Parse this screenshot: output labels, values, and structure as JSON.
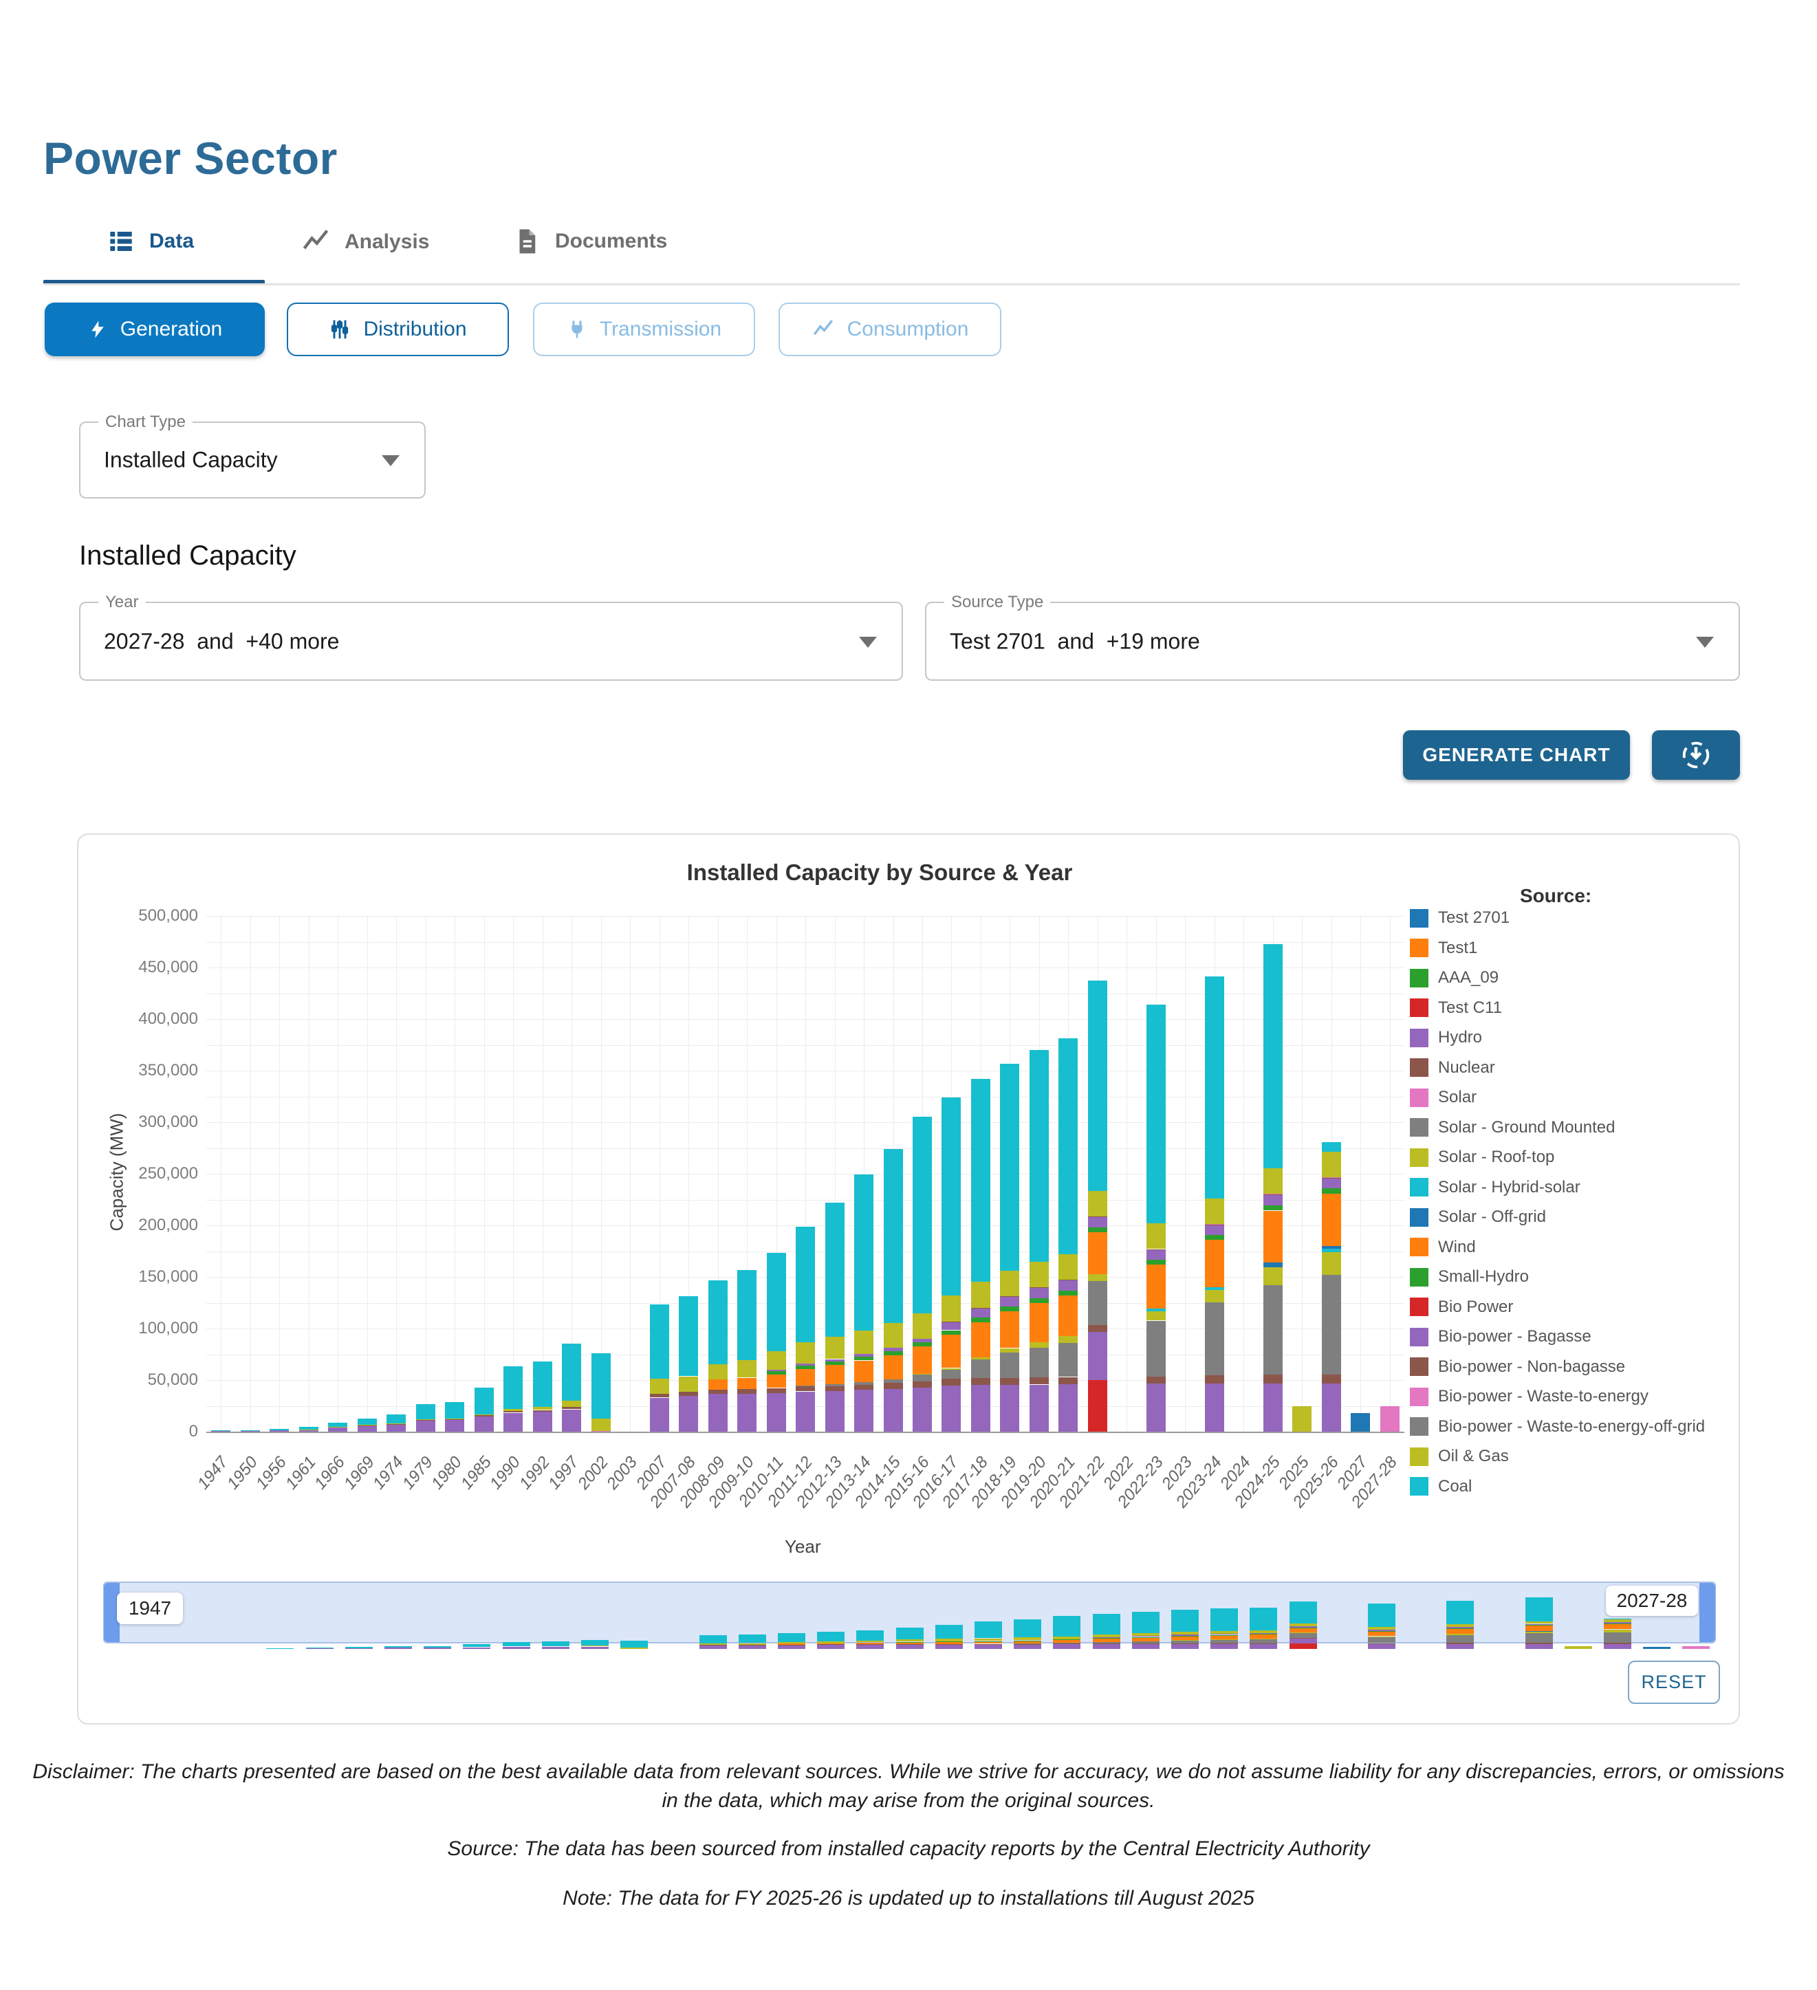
{
  "page": {
    "title": "Power Sector"
  },
  "tabs": [
    {
      "label": "Data",
      "active": true
    },
    {
      "label": "Analysis",
      "active": false
    },
    {
      "label": "Documents",
      "active": false
    }
  ],
  "category_buttons": [
    {
      "label": "Generation",
      "state": "filled"
    },
    {
      "label": "Distribution",
      "state": "outline"
    },
    {
      "label": "Transmission",
      "state": "light"
    },
    {
      "label": "Consumption",
      "state": "light"
    }
  ],
  "filters": {
    "chart_type": {
      "label": "Chart Type",
      "value": "Installed Capacity"
    },
    "section_heading": "Installed Capacity",
    "year": {
      "label": "Year",
      "value": "2027-28  and  +40 more"
    },
    "source_type": {
      "label": "Source Type",
      "value": "Test 2701  and  +19 more"
    }
  },
  "actions": {
    "generate": "GENERATE CHART",
    "reset": "RESET"
  },
  "navigator": {
    "start_label": "1947",
    "end_label": "2027-28"
  },
  "footer": {
    "disclaimer_line1": "Disclaimer: The charts presented are based on the best available data from relevant sources. While we strive for accuracy, we do not assume liability for any discrepancies, errors, or omissions",
    "disclaimer_line2": "in the data, which may arise from the original sources.",
    "source": "Source: The data has been sourced from installed capacity reports by the Central Electricity Authority",
    "note": "Note: The data for FY 2025-26 is updated up to installations till August 2025"
  },
  "chart_data": {
    "type": "bar",
    "stacked": true,
    "title": "Installed Capacity by Source & Year",
    "xlabel": "Year",
    "ylabel": "Capacity (MW)",
    "legend_title": "Source:",
    "ylim": [
      0,
      500000
    ],
    "ytick_step": 50000,
    "grid": true,
    "categories": [
      "1947",
      "1950",
      "1956",
      "1961",
      "1966",
      "1969",
      "1974",
      "1979",
      "1980",
      "1985",
      "1990",
      "1992",
      "1997",
      "2002",
      "2003",
      "2007",
      "2007-08",
      "2008-09",
      "2009-10",
      "2010-11",
      "2011-12",
      "2012-13",
      "2013-14",
      "2014-15",
      "2015-16",
      "2016-17",
      "2017-18",
      "2018-19",
      "2019-20",
      "2020-21",
      "2021-22",
      "2022",
      "2022-23",
      "2023",
      "2023-24",
      "2024",
      "2024-25",
      "2025",
      "2025-26",
      "2027",
      "2027-28"
    ],
    "series": [
      {
        "name": "Test 2701",
        "color": "#1f77b4",
        "values": [
          0,
          0,
          0,
          0,
          0,
          0,
          0,
          0,
          0,
          0,
          0,
          0,
          0,
          0,
          0,
          0,
          0,
          0,
          0,
          0,
          0,
          0,
          0,
          0,
          0,
          0,
          0,
          0,
          0,
          0,
          0,
          0,
          0,
          0,
          0,
          0,
          0,
          0,
          0,
          18000,
          0
        ]
      },
      {
        "name": "Test1",
        "color": "#ff7f0e",
        "values": [
          0,
          0,
          0,
          0,
          0,
          0,
          0,
          0,
          0,
          0,
          0,
          0,
          0,
          0,
          0,
          0,
          0,
          0,
          0,
          0,
          0,
          0,
          0,
          0,
          0,
          0,
          0,
          0,
          0,
          0,
          0,
          0,
          0,
          0,
          0,
          0,
          0,
          0,
          0,
          0,
          0
        ]
      },
      {
        "name": "AAA_09",
        "color": "#2ca02c",
        "values": [
          0,
          0,
          0,
          0,
          0,
          0,
          0,
          0,
          0,
          0,
          0,
          0,
          0,
          0,
          0,
          0,
          0,
          0,
          0,
          0,
          0,
          0,
          0,
          0,
          0,
          0,
          0,
          0,
          0,
          0,
          0,
          0,
          0,
          0,
          0,
          0,
          0,
          0,
          0,
          0,
          0
        ]
      },
      {
        "name": "Test C11",
        "color": "#d62728",
        "values": [
          0,
          0,
          0,
          0,
          0,
          0,
          0,
          0,
          0,
          0,
          0,
          0,
          0,
          0,
          0,
          0,
          0,
          0,
          0,
          0,
          0,
          0,
          0,
          0,
          0,
          0,
          0,
          0,
          0,
          0,
          50000,
          0,
          0,
          0,
          0,
          0,
          0,
          0,
          0,
          0,
          0
        ]
      },
      {
        "name": "Hydro",
        "color": "#9467bd",
        "values": [
          508,
          560,
          1061,
          1917,
          4124,
          5907,
          6966,
          10833,
          11384,
          14460,
          18308,
          19194,
          21658,
          0,
          0,
          33000,
          34654,
          36878,
          36863,
          37567,
          38990,
          39491,
          40531,
          41267,
          42783,
          44478,
          45293,
          45399,
          45699,
          46209,
          46723,
          0,
          46850,
          0,
          46928,
          0,
          46968,
          0,
          46968,
          0,
          0
        ]
      },
      {
        "name": "Nuclear",
        "color": "#8c564b",
        "values": [
          0,
          0,
          0,
          0,
          0,
          420,
          640,
          640,
          860,
          1330,
          1565,
          1785,
          2225,
          0,
          0,
          3900,
          4120,
          4120,
          4560,
          4780,
          4780,
          4780,
          4780,
          5780,
          5780,
          6780,
          6780,
          6780,
          6780,
          6780,
          6780,
          0,
          6780,
          0,
          7480,
          0,
          8180,
          0,
          8180,
          0,
          0
        ]
      },
      {
        "name": "Solar",
        "color": "#e377c2",
        "values": [
          0,
          0,
          0,
          0,
          0,
          0,
          0,
          0,
          0,
          0,
          0,
          0,
          0,
          900,
          0,
          0,
          0,
          0,
          0,
          0,
          0,
          0,
          0,
          0,
          0,
          0,
          0,
          0,
          0,
          0,
          0,
          0,
          0,
          0,
          0,
          0,
          0,
          0,
          0,
          0,
          25000
        ]
      },
      {
        "name": "Solar - Ground Mounted",
        "color": "#7f7f7f",
        "values": [
          0,
          0,
          0,
          0,
          0,
          0,
          0,
          0,
          0,
          0,
          0,
          0,
          0,
          0,
          0,
          0,
          0,
          0,
          0,
          0,
          941,
          1686,
          2632,
          3744,
          6763,
          9010,
          18000,
          24404,
          28600,
          33400,
          42633,
          0,
          53997,
          0,
          71000,
          0,
          87180,
          0,
          97000,
          0,
          0
        ]
      },
      {
        "name": "Solar - Roof-top",
        "color": "#bcbd22",
        "values": [
          0,
          0,
          0,
          0,
          0,
          0,
          0,
          0,
          0,
          0,
          0,
          0,
          0,
          0,
          0,
          0,
          0,
          0,
          0,
          0,
          0,
          0,
          0,
          0,
          500,
          1396,
          2000,
          4375,
          5800,
          6300,
          6645,
          0,
          8877,
          0,
          11870,
          0,
          17020,
          0,
          22000,
          0,
          0
        ]
      },
      {
        "name": "Solar - Hybrid-solar",
        "color": "#17becf",
        "values": [
          0,
          0,
          0,
          0,
          0,
          0,
          0,
          0,
          0,
          0,
          0,
          0,
          0,
          0,
          0,
          0,
          0,
          0,
          0,
          0,
          0,
          0,
          0,
          0,
          0,
          0,
          0,
          0,
          0,
          0,
          0,
          0,
          2570,
          0,
          2600,
          0,
          0,
          0,
          3000,
          0,
          0
        ]
      },
      {
        "name": "Solar - Off-grid",
        "color": "#1f77b4",
        "values": [
          0,
          0,
          0,
          0,
          0,
          0,
          0,
          0,
          0,
          0,
          0,
          0,
          0,
          0,
          0,
          0,
          0,
          0,
          0,
          0,
          0,
          0,
          0,
          0,
          0,
          0,
          0,
          0,
          0,
          0,
          0,
          0,
          0,
          0,
          0,
          0,
          4980,
          0,
          3000,
          0,
          0
        ]
      },
      {
        "name": "Wind",
        "color": "#ff7f0e",
        "values": [
          0,
          0,
          0,
          0,
          0,
          0,
          0,
          0,
          0,
          0,
          0,
          0,
          0,
          0,
          0,
          0,
          0,
          9645,
          10925,
          13065,
          16084,
          18421,
          21043,
          23444,
          26777,
          32280,
          34046,
          35626,
          37744,
          39247,
          40358,
          0,
          42633,
          0,
          45887,
          0,
          50038,
          0,
          50500,
          0,
          0
        ]
      },
      {
        "name": "Small-Hydro",
        "color": "#2ca02c",
        "values": [
          0,
          0,
          0,
          0,
          0,
          0,
          0,
          0,
          0,
          0,
          0,
          0,
          0,
          0,
          0,
          0,
          0,
          0,
          0,
          3043,
          3395,
          3632,
          3804,
          4055,
          4273,
          4380,
          4486,
          4604,
          4683,
          4786,
          4848,
          0,
          4944,
          0,
          4995,
          0,
          5101,
          0,
          5101,
          0,
          0
        ]
      },
      {
        "name": "Bio Power",
        "color": "#d62728",
        "values": [
          0,
          0,
          0,
          0,
          0,
          0,
          0,
          0,
          0,
          0,
          0,
          0,
          0,
          0,
          0,
          0,
          0,
          0,
          0,
          0,
          0,
          0,
          0,
          0,
          0,
          0,
          0,
          0,
          0,
          0,
          0,
          0,
          0,
          0,
          0,
          0,
          0,
          0,
          0,
          0,
          0
        ]
      },
      {
        "name": "Bio-power - Bagasse",
        "color": "#9467bd",
        "values": [
          0,
          0,
          0,
          0,
          0,
          0,
          0,
          0,
          0,
          0,
          0,
          0,
          0,
          0,
          0,
          0,
          0,
          0,
          0,
          1742,
          2070,
          2337,
          2558,
          2800,
          3100,
          7857,
          8700,
          9186,
          9800,
          9700,
          9735,
          0,
          9433,
          0,
          9433,
          0,
          9806,
          0,
          9806,
          0,
          0
        ]
      },
      {
        "name": "Bio-power - Non-bagasse",
        "color": "#8c564b",
        "values": [
          0,
          0,
          0,
          0,
          0,
          0,
          0,
          0,
          0,
          0,
          0,
          0,
          0,
          0,
          0,
          0,
          0,
          0,
          0,
          0,
          0,
          0,
          0,
          0,
          0,
          649,
          677,
          772,
          800,
          772,
          772,
          0,
          772,
          0,
          772,
          0,
          772,
          0,
          772,
          0,
          0
        ]
      },
      {
        "name": "Bio-power - Waste-to-energy",
        "color": "#e377c2",
        "values": [
          0,
          0,
          0,
          0,
          0,
          0,
          0,
          0,
          0,
          0,
          0,
          0,
          0,
          0,
          0,
          0,
          0,
          0,
          0,
          0,
          0,
          0,
          0,
          0,
          0,
          0,
          0,
          0,
          0,
          0,
          0,
          0,
          249,
          0,
          282,
          0,
          370,
          0,
          370,
          0,
          0
        ]
      },
      {
        "name": "Bio-power - Waste-to-energy-off-grid",
        "color": "#7f7f7f",
        "values": [
          0,
          0,
          0,
          0,
          0,
          0,
          0,
          0,
          0,
          0,
          0,
          0,
          0,
          0,
          0,
          0,
          0,
          0,
          0,
          0,
          0,
          0,
          0,
          0,
          0,
          0,
          0,
          0,
          0,
          0,
          0,
          0,
          0,
          0,
          0,
          0,
          0,
          0,
          0,
          0,
          0
        ]
      },
      {
        "name": "Oil & Gas",
        "color": "#bcbd22",
        "values": [
          99,
          99,
          99,
          300,
          352,
          400,
          450,
          500,
          500,
          1000,
          2300,
          2800,
          5900,
          11700,
          0,
          14600,
          14877,
          14877,
          17056,
          17706,
          20110,
          21762,
          22608,
          24000,
          24509,
          25329,
          25150,
          25000,
          25000,
          24924,
          24899,
          0,
          24824,
          0,
          24824,
          0,
          24674,
          24500,
          25000,
          0,
          0
        ]
      },
      {
        "name": "Coal",
        "color": "#17becf",
        "values": [
          756,
          1004,
          1597,
          2436,
          4417,
          6100,
          8550,
          14500,
          15800,
          25700,
          41300,
          44400,
          55300,
          63300,
          0,
          71800,
          77549,
          81488,
          87093,
          95521,
          112022,
          130221,
          151530,
          169118,
          191000,
          192163,
          197172,
          200705,
          205135,
          209294,
          204080,
          0,
          212000,
          0,
          215000,
          0,
          217586,
          0,
          9000,
          0,
          0
        ]
      }
    ]
  }
}
